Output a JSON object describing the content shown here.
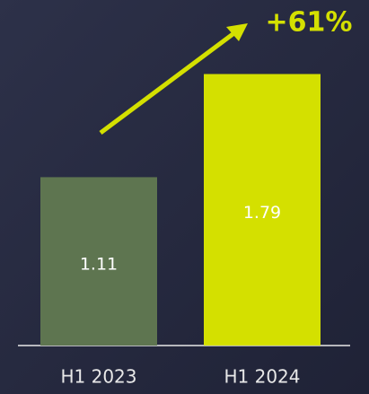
{
  "chart_data": {
    "type": "bar",
    "annotation": "+61%",
    "categories": [
      "H1 2023",
      "H1 2024"
    ],
    "values": [
      1.11,
      1.79
    ],
    "colors": [
      "#5e7550",
      "#d4e000"
    ],
    "ylim": [
      0,
      2
    ]
  }
}
